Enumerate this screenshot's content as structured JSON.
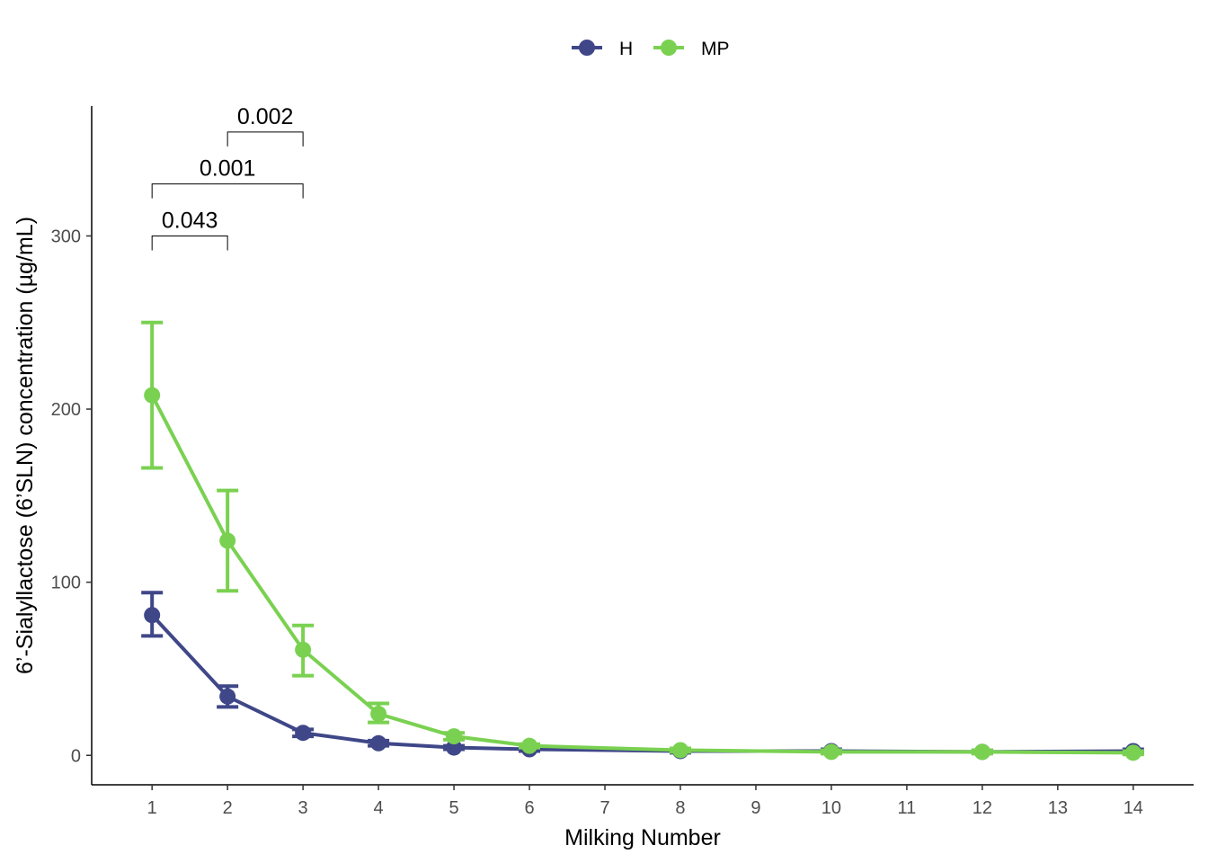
{
  "chart_data": {
    "type": "line",
    "xlabel": "Milking Number",
    "ylabel": "6’-Sialyllactose (6’SLN) concentration (µg/mL)",
    "x_ticks": [
      1,
      2,
      3,
      4,
      5,
      6,
      7,
      8,
      9,
      10,
      11,
      12,
      13,
      14
    ],
    "y_ticks": [
      0,
      100,
      200,
      300
    ],
    "xlim": [
      0.2,
      14.8
    ],
    "ylim": [
      -17,
      375
    ],
    "legend_position": "top",
    "grid": false,
    "series": [
      {
        "name": "H",
        "color": "#3f4788",
        "x": [
          1,
          2,
          3,
          4,
          5,
          6,
          8,
          10,
          12,
          14
        ],
        "y": [
          81,
          34,
          13,
          7,
          4.5,
          3.5,
          2.5,
          2.5,
          2,
          2.5
        ],
        "err_low": [
          69,
          28,
          11,
          5.5,
          3.5,
          2.5,
          1.5,
          1.5,
          1.5,
          1.5
        ],
        "err_high": [
          94,
          40,
          15,
          8.5,
          5.5,
          4.5,
          3.5,
          3.5,
          3,
          3.5
        ]
      },
      {
        "name": "MP",
        "color": "#7ad151",
        "x": [
          1,
          2,
          3,
          4,
          5,
          6,
          8,
          10,
          12,
          14
        ],
        "y": [
          208,
          124,
          61,
          24,
          11,
          5.5,
          3,
          2,
          2,
          1.5
        ],
        "err_low": [
          166,
          95,
          46,
          19,
          9,
          4.5,
          2,
          1,
          1,
          0.5
        ],
        "err_high": [
          250,
          153,
          75,
          30,
          13,
          6.5,
          4,
          3,
          3,
          2.5
        ]
      }
    ],
    "comparisons": [
      {
        "x1": 1,
        "x2": 2,
        "y": 300,
        "label": "0.043"
      },
      {
        "x1": 1,
        "x2": 3,
        "y": 330,
        "label": "0.001"
      },
      {
        "x1": 2,
        "x2": 3,
        "y": 360,
        "label": "0.002"
      }
    ]
  }
}
